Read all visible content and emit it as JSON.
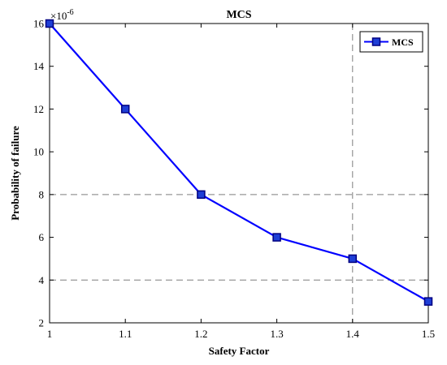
{
  "chart_data": {
    "type": "line",
    "title": "MCS",
    "xlabel": "Safety Factor",
    "ylabel": "Probability of failure",
    "exponent_label": "×10",
    "exponent_power": "-6",
    "xlim": [
      1,
      1.5
    ],
    "ylim": [
      2,
      16
    ],
    "xticks": [
      "1",
      "1.1",
      "1.2",
      "1.3",
      "1.4",
      "1.5"
    ],
    "yticks": [
      "2",
      "4",
      "6",
      "8",
      "10",
      "12",
      "14",
      "16"
    ],
    "grid": false,
    "legend_position": "top-right",
    "series": [
      {
        "name": "MCS",
        "color": "#0000FF",
        "marker": "square",
        "x": [
          1,
          1.1,
          1.2,
          1.3,
          1.4,
          1.5
        ],
        "y": [
          16,
          12,
          8,
          6,
          5,
          3
        ]
      }
    ],
    "reference_lines": {
      "horizontal_y": [
        8,
        4
      ],
      "vertical_x": [
        1.4
      ],
      "style": "dashed",
      "color": "#7f7f7f"
    }
  }
}
